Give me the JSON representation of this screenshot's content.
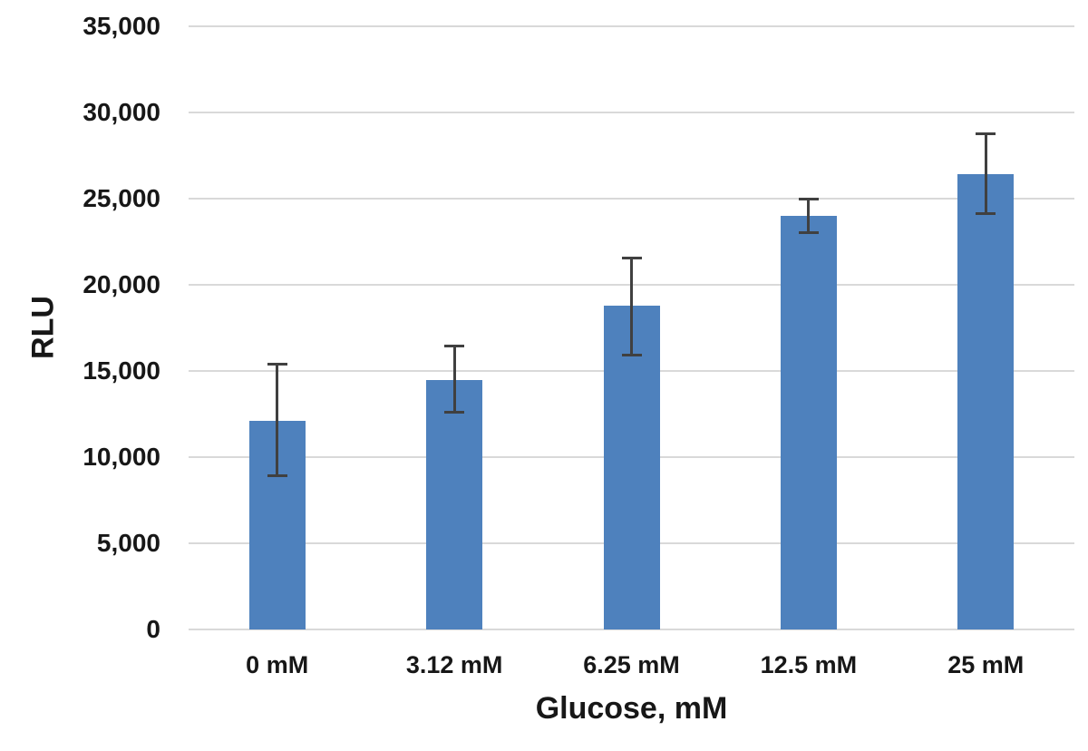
{
  "chart_data": {
    "type": "bar",
    "title": "",
    "xlabel": "Glucose, mM",
    "ylabel": "RLU",
    "categories": [
      "0 mM",
      "3.12 mM",
      "6.25 mM",
      "12.5 mM",
      "25 mM"
    ],
    "values": [
      12100,
      14500,
      18800,
      24000,
      26400
    ],
    "error_upper": [
      15400,
      16500,
      21600,
      25000,
      28800
    ],
    "error_lower": [
      8900,
      12600,
      15900,
      23000,
      24100
    ],
    "ylim": [
      0,
      35000
    ],
    "ytick_step": 5000,
    "ytick_labels": [
      "0",
      "5,000",
      "10,000",
      "15,000",
      "20,000",
      "25,000",
      "30,000",
      "35,000"
    ],
    "grid": "horizontal",
    "legend": "none",
    "colors": {
      "bar_fill": "#4e81bd",
      "error_bar": "#404040",
      "gridline": "#d9d9d9",
      "text": "#171717",
      "background": "#ffffff"
    }
  }
}
